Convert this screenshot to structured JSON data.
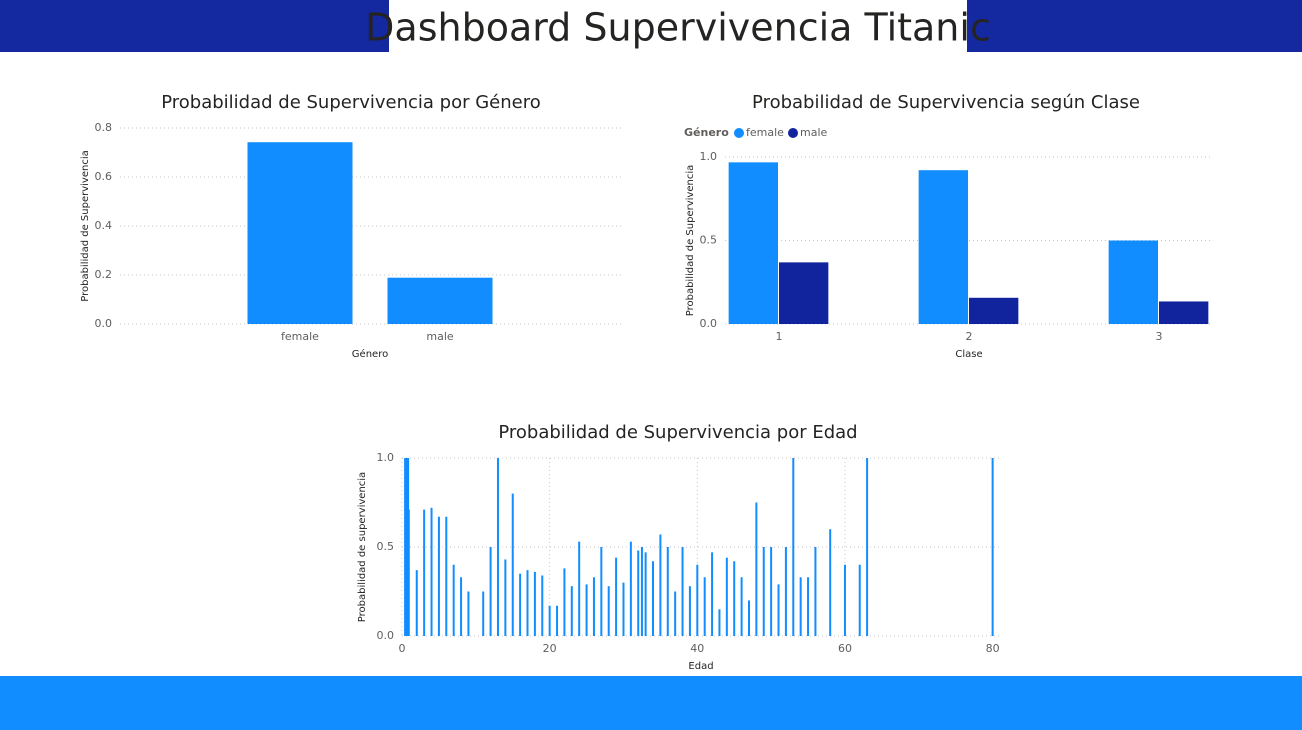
{
  "title": "Dashboard Supervivencia Titanic",
  "chart_data": [
    {
      "type": "bar",
      "title": "Probabilidad de Supervivencia por Género",
      "xlabel": "Género",
      "ylabel": "Probabilidad de Supervivencia",
      "categories": [
        "female",
        "male"
      ],
      "values": [
        0.742,
        0.189
      ],
      "color": "#118dff",
      "ylim": [
        0,
        0.8
      ],
      "yticks": [
        {
          "value": 0,
          "label": "0.0"
        },
        0.2,
        0.4,
        0.6,
        0.8
      ],
      "grid": true
    },
    {
      "type": "bar",
      "title": "Probabilidad de Supervivencia según Clase",
      "xlabel": "Clase",
      "ylabel": "Probabilidad de Supervivencia",
      "legend_title": "Género",
      "categories": [
        "1",
        "2",
        "3"
      ],
      "series": [
        {
          "name": "female",
          "color": "#118dff",
          "values": [
            0.968,
            0.921,
            0.5
          ]
        },
        {
          "name": "male",
          "color": "#12239e",
          "values": [
            0.369,
            0.157,
            0.135
          ]
        }
      ],
      "ylim": [
        0,
        1
      ],
      "yticks": [
        {
          "value": 0,
          "label": "0.0"
        },
        0.5,
        {
          "value": 1,
          "label": "1.0"
        }
      ],
      "grid": true
    },
    {
      "type": "bar",
      "title": "Probabilidad de Supervivencia por Edad",
      "xlabel": "Edad",
      "ylabel": "Probabilidad de supervivencia",
      "x": [
        0.42,
        0.67,
        0.75,
        0.83,
        0.92,
        2,
        3,
        4,
        5,
        6,
        7,
        8,
        9,
        11,
        12,
        13,
        14,
        15,
        16,
        17,
        18,
        19,
        20,
        21,
        22,
        23,
        24,
        25,
        26,
        27,
        28,
        29,
        30,
        31,
        32,
        32.5,
        33,
        34,
        35,
        36,
        37,
        38,
        39,
        40,
        41,
        42,
        43,
        44,
        45,
        46,
        47,
        48,
        49,
        50,
        51,
        52,
        53,
        54,
        55,
        56,
        58,
        60,
        62,
        63,
        80
      ],
      "values": [
        1,
        1,
        1,
        1,
        0.71,
        0.37,
        0.71,
        0.72,
        0.67,
        0.67,
        0.4,
        0.33,
        0.25,
        0.25,
        0.5,
        1,
        0.43,
        0.8,
        0.35,
        0.37,
        0.36,
        0.34,
        0.17,
        0.17,
        0.38,
        0.28,
        0.53,
        0.29,
        0.33,
        0.5,
        0.28,
        0.44,
        0.3,
        0.53,
        0.48,
        0.5,
        0.47,
        0.42,
        0.57,
        0.5,
        0.25,
        0.5,
        0.28,
        0.4,
        0.33,
        0.47,
        0.15,
        0.44,
        0.42,
        0.33,
        0.2,
        0.75,
        0.5,
        0.5,
        0.29,
        0.5,
        1,
        0.33,
        0.33,
        0.5,
        0.6,
        0.4,
        0.4,
        1,
        1
      ],
      "color": "#118dff",
      "xlim": [
        0,
        81
      ],
      "xticks": [
        0,
        20,
        40,
        60,
        80
      ],
      "ylim": [
        0,
        1
      ],
      "yticks": [
        {
          "value": 0,
          "label": "0.0"
        },
        0.5,
        {
          "value": 1,
          "label": "1.0"
        }
      ],
      "grid": true
    }
  ]
}
